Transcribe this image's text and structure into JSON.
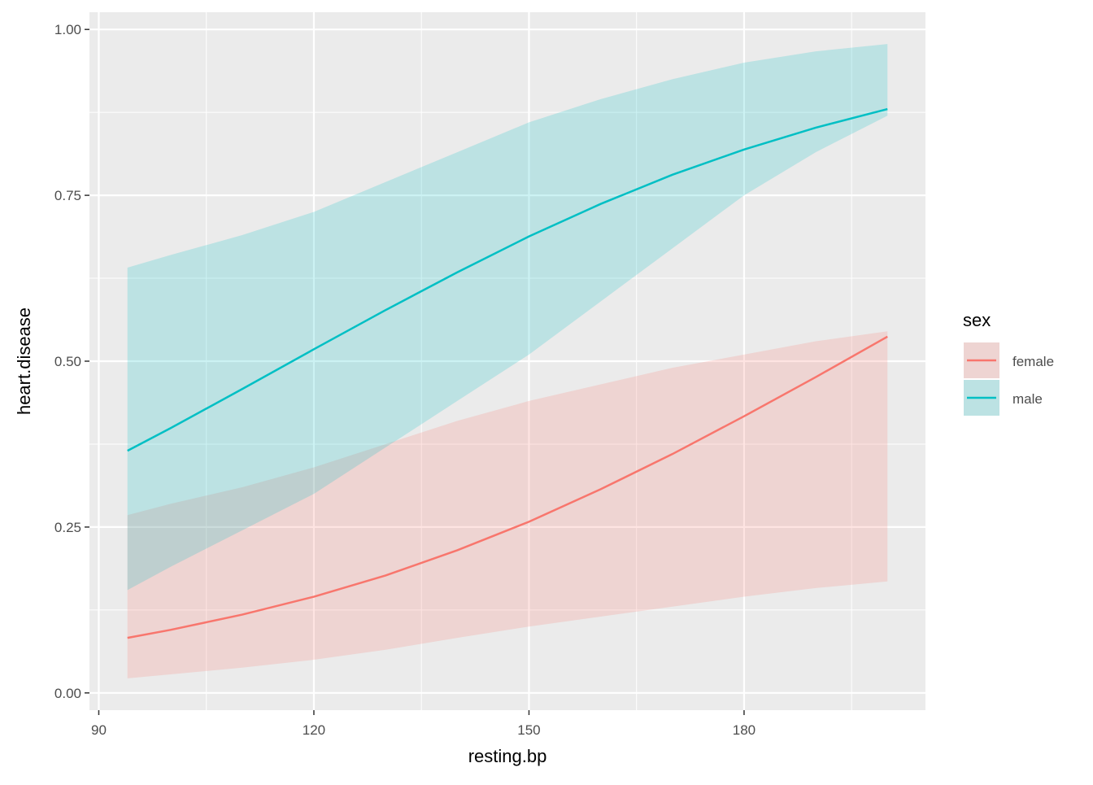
{
  "chart_data": {
    "type": "line",
    "x_label": "resting.bp",
    "y_label": "heart.disease",
    "legend_title": "sex",
    "legend_position": "right",
    "grid": true,
    "x": [
      94,
      100,
      110,
      120,
      130,
      140,
      150,
      160,
      170,
      180,
      190,
      200
    ],
    "series": [
      {
        "name": "female",
        "color": "#F8766D",
        "values": [
          0.083,
          0.095,
          0.118,
          0.145,
          0.177,
          0.215,
          0.258,
          0.307,
          0.36,
          0.417,
          0.476,
          0.537
        ],
        "lower": [
          0.022,
          0.028,
          0.038,
          0.05,
          0.065,
          0.083,
          0.1,
          0.115,
          0.13,
          0.145,
          0.158,
          0.168
        ],
        "upper": [
          0.268,
          0.285,
          0.31,
          0.34,
          0.375,
          0.41,
          0.44,
          0.465,
          0.49,
          0.51,
          0.53,
          0.545
        ]
      },
      {
        "name": "male",
        "color": "#00BFC4",
        "values": [
          0.365,
          0.399,
          0.458,
          0.518,
          0.577,
          0.634,
          0.688,
          0.737,
          0.781,
          0.819,
          0.852,
          0.88
        ],
        "lower": [
          0.155,
          0.19,
          0.245,
          0.3,
          0.37,
          0.44,
          0.51,
          0.59,
          0.67,
          0.75,
          0.815,
          0.87
        ],
        "upper": [
          0.641,
          0.66,
          0.69,
          0.725,
          0.77,
          0.815,
          0.86,
          0.895,
          0.925,
          0.95,
          0.967,
          0.978
        ]
      }
    ],
    "xlim": [
      88.7,
      205.3
    ],
    "ylim": [
      -0.026,
      1.026
    ],
    "xticks": [
      90,
      120,
      150,
      180
    ],
    "minor_xticks": [
      105,
      135,
      165,
      195
    ],
    "yticks": [
      {
        "value": 0,
        "label": "0.00"
      },
      {
        "value": 0.25,
        "label": "0.25"
      },
      {
        "value": 0.5,
        "label": "0.50"
      },
      {
        "value": 0.75,
        "label": "0.75"
      },
      {
        "value": 1,
        "label": "1.00"
      }
    ],
    "minor_yticks": [
      0.125,
      0.375,
      0.625,
      0.875
    ]
  }
}
